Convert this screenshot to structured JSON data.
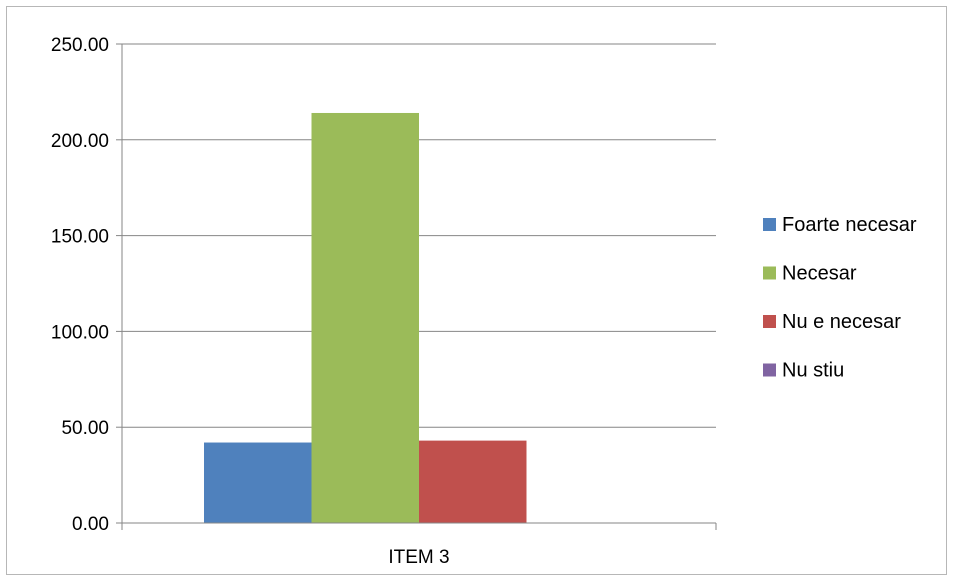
{
  "chart_data": {
    "type": "bar",
    "categories": [
      "ITEM 3"
    ],
    "series": [
      {
        "name": "Foarte necesar",
        "values": [
          42
        ],
        "color": "#4f81bd"
      },
      {
        "name": "Necesar",
        "values": [
          214
        ],
        "color": "#9bbb59"
      },
      {
        "name": "Nu e necesar",
        "values": [
          43
        ],
        "color": "#c0504d"
      },
      {
        "name": "Nu stiu",
        "values": [
          0
        ],
        "color": "#8064a2"
      }
    ],
    "ylim": [
      0,
      250
    ],
    "yticks": [
      "0.00",
      "50.00",
      "100.00",
      "150.00",
      "200.00",
      "250.00"
    ],
    "ytick_values": [
      0,
      50,
      100,
      150,
      200,
      250
    ],
    "grid": true,
    "legend": "right"
  }
}
